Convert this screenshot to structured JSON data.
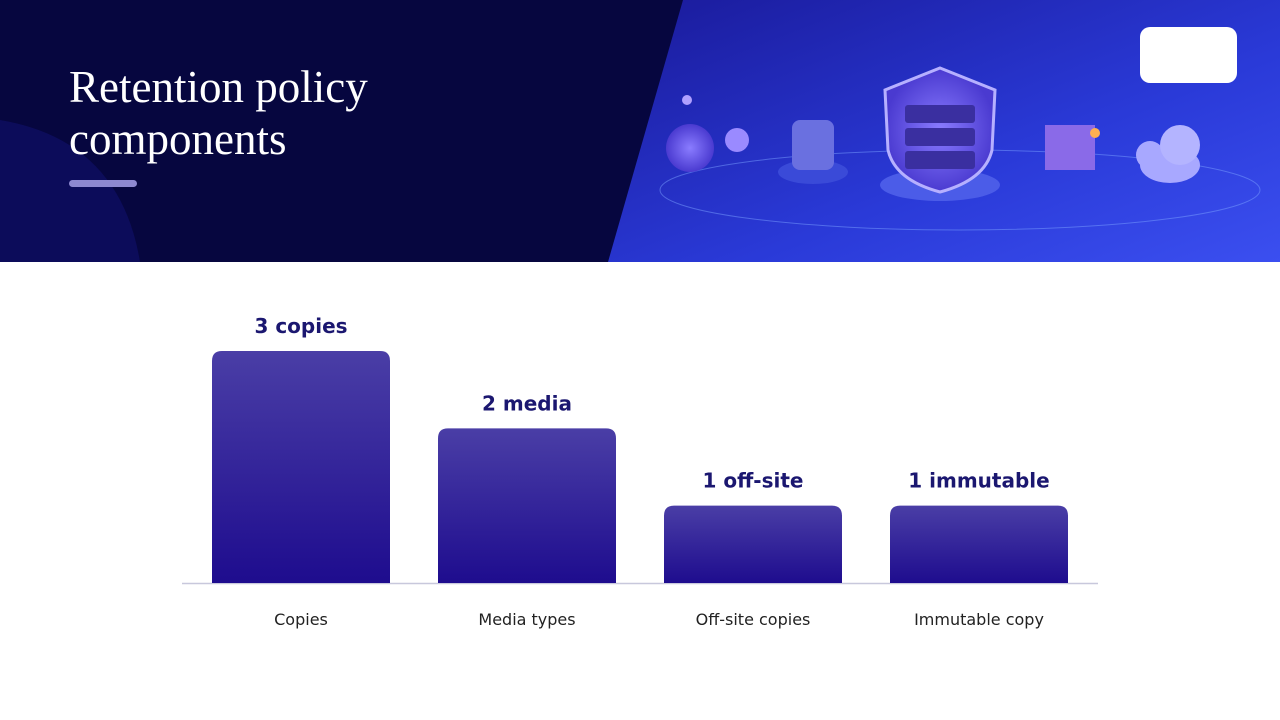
{
  "chart_data": {
    "type": "bar",
    "title": "Retention policy components",
    "categories": [
      "Copies",
      "Media types",
      "Off-site copies",
      "Immutable copy"
    ],
    "values": [
      3,
      2,
      1,
      1
    ],
    "value_labels": [
      "3 copies",
      "2 media",
      "1 off-site",
      "1 immutable"
    ],
    "color": "#2a1a98"
  }
}
